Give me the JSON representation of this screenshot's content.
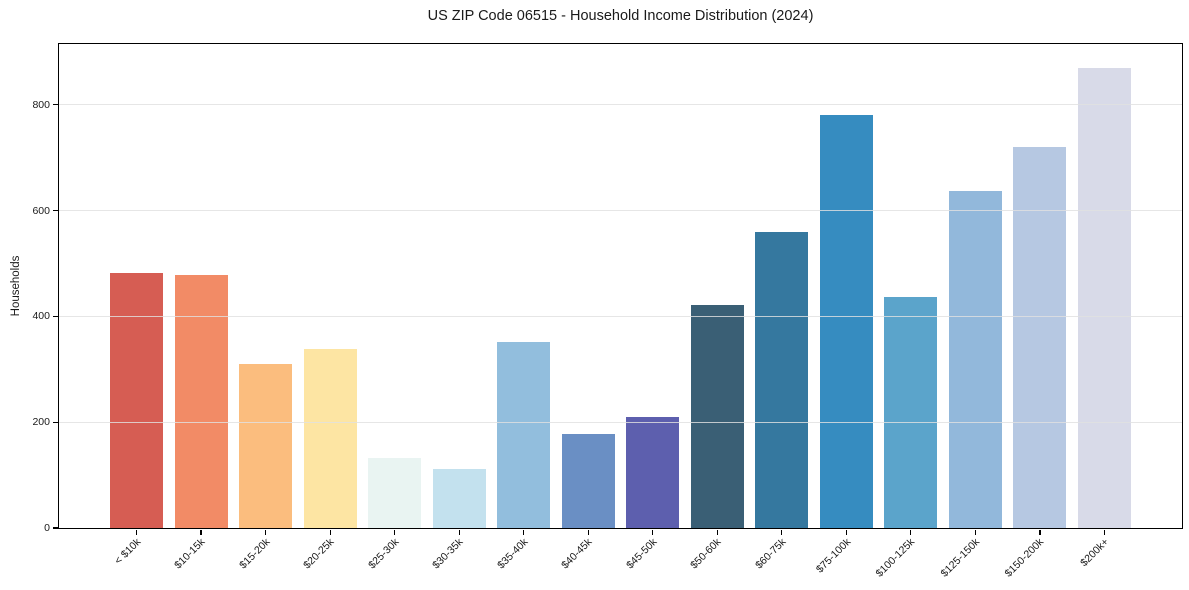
{
  "page": {
    "background_color": "#ffffff",
    "text_color": "#1a1a1a",
    "axis_color": "#000000",
    "grid_color": "#e1e1e1"
  },
  "chart_data": {
    "type": "bar",
    "title": "US ZIP Code 06515 - Household Income Distribution (2024)",
    "xlabel": "",
    "ylabel": "Households",
    "categories": [
      "< $10k",
      "$10-15k",
      "$15-20k",
      "$20-25k",
      "$25-30k",
      "$30-35k",
      "$35-40k",
      "$40-45k",
      "$45-50k",
      "$50-60k",
      "$60-75k",
      "$75-100k",
      "$100-125k",
      "$125-150k",
      "$150-200k",
      "$200k+"
    ],
    "values": [
      482,
      479,
      310,
      339,
      133,
      112,
      352,
      178,
      209,
      422,
      560,
      781,
      436,
      638,
      720,
      870
    ],
    "bar_colors": [
      "#d65d53",
      "#f28b66",
      "#fbbd7e",
      "#fde5a3",
      "#e9f4f2",
      "#c3e1ee",
      "#92bedd",
      "#6a8fc4",
      "#5d5fae",
      "#3a5f75",
      "#35789f",
      "#368cc0",
      "#5ba4cb",
      "#92b8db",
      "#b6c8e2",
      "#d8dae8"
    ],
    "yticks": [
      0,
      200,
      400,
      600,
      800
    ],
    "ylim": [
      0,
      915
    ],
    "grid": "horizontal",
    "legend": "none",
    "x_tick_label_rotation_deg": 45
  }
}
